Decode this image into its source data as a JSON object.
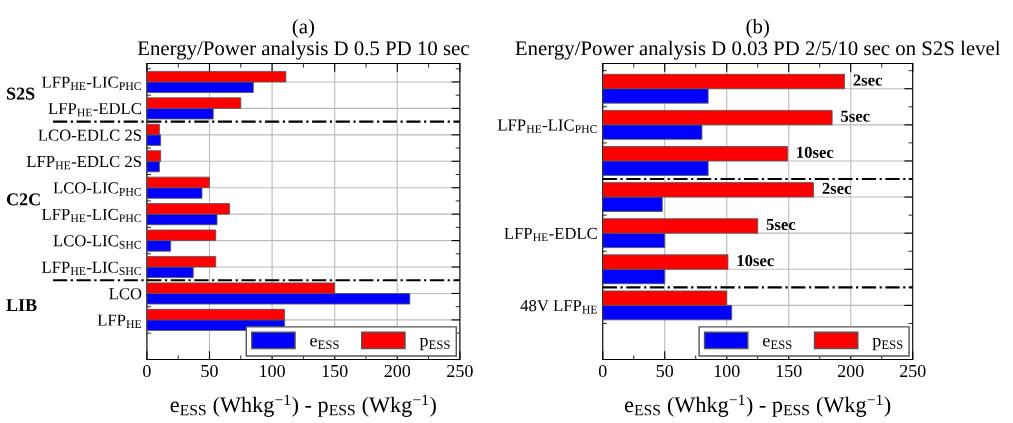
{
  "chart_data": [
    {
      "type": "bar",
      "orientation": "horizontal",
      "title": "(a)\nEnergy/Power analysis D 0.5 PD 10 sec",
      "xlabel": "e$_{ESS}$ (Whkg$^{−1}$) - p$_{ESS}$ (Wkg$^{−1}$)",
      "categories": [
        "LFP$_{HE}$-LIC$_{PHC}$",
        "LFP$_{HE}$-EDLC",
        "LCO-EDLC 2S",
        "LFP$_{HE}$-EDLC 2S",
        "LCO-LIC$_{PHC}$",
        "LFP$_{HE}$-LIC$_{PHC}$",
        "LCO-LIC$_{SHC}$",
        "LFP$_{HE}$-LIC$_{SHC}$",
        "LCO",
        "LFP$_{HE}$"
      ],
      "series": [
        {
          "name": "e$_{ESS}$",
          "color": "#0000ff",
          "values": [
            85,
            53,
            11,
            10,
            44,
            56,
            19,
            37,
            210,
            110
          ]
        },
        {
          "name": "p$_{ESS}$",
          "color": "#ff0000",
          "values": [
            111,
            75,
            10,
            11,
            50,
            66,
            55,
            55,
            150,
            110
          ]
        }
      ],
      "xlim": [
        0,
        250
      ],
      "xticks": [
        0,
        50,
        100,
        150,
        200,
        250
      ],
      "grid": true,
      "legend": "bottom right",
      "annotations": [
        "S2S",
        "C2C",
        "LIB"
      ]
    },
    {
      "type": "bar",
      "orientation": "horizontal",
      "title": "(b)\nEnergy/Power analysis D 0.03 PD 2/5/10 sec on S2S level",
      "xlabel": "e$_{ESS}$ (Whkg$^{−1}$) - p$_{ESS}$ (Wkg$^{−1}$)",
      "categories": [
        null,
        "LFP$_{HE}$-LIC$_{PHC}$",
        null,
        null,
        "LFP$_{HE}$-EDLC",
        null,
        "48V LFP$_{HE}$"
      ],
      "series": [
        {
          "name": "e$_{ESS}$",
          "color": "#0000ff",
          "values": [
            85,
            80,
            85,
            48,
            50,
            50,
            104
          ]
        },
        {
          "name": "p$_{ESS}$",
          "color": "#ff0000",
          "values": [
            195,
            185,
            149,
            170,
            125,
            101,
            100
          ]
        }
      ],
      "xlim": [
        0,
        250
      ],
      "xticks": [
        0,
        50,
        100,
        150,
        200,
        250
      ],
      "grid": true,
      "legend": "bottom right",
      "annotations": [
        "2sec",
        "5sec",
        "10sec",
        "2sec",
        "5sec",
        "10sec"
      ]
    }
  ]
}
